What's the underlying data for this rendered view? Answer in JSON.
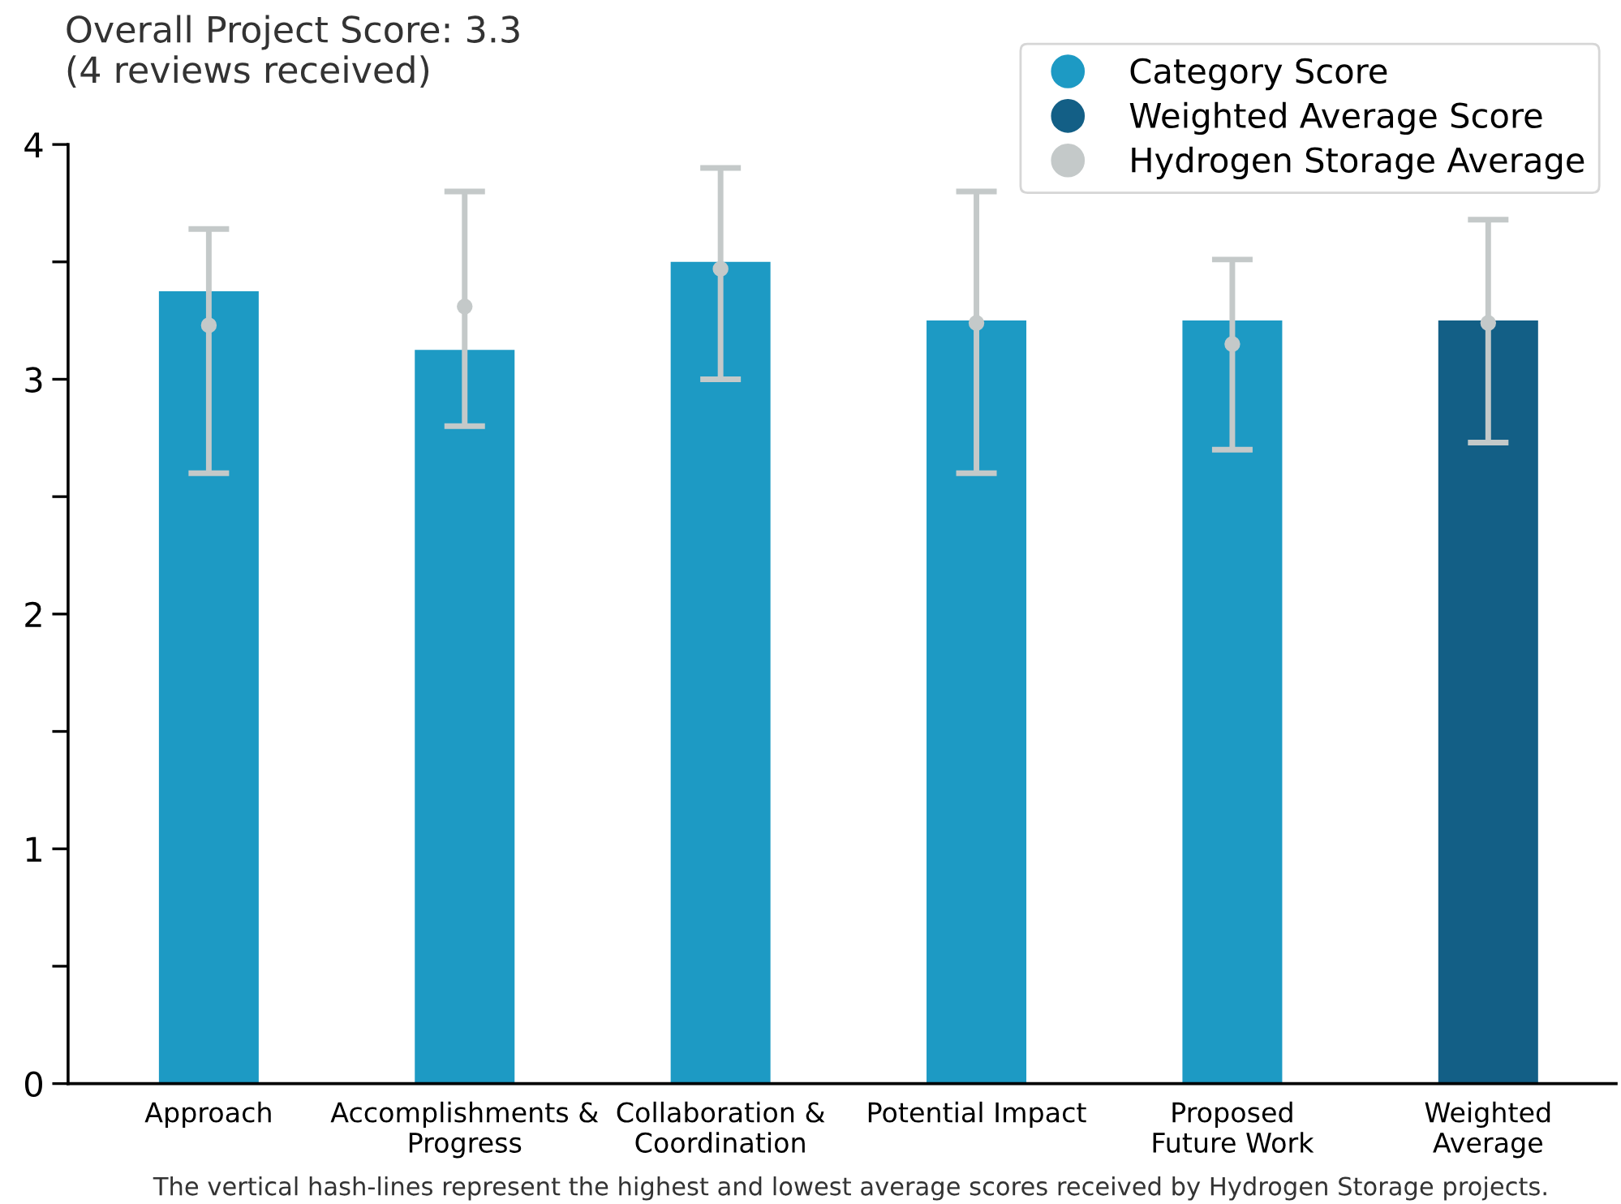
{
  "chart_data": {
    "type": "bar",
    "title": "Overall Project Score: 3.3\n(4 reviews received)",
    "categories": [
      "Approach",
      "Accomplishments &\nProgress",
      "Collaboration &\nCoordination",
      "Potential Impact",
      "Proposed\nFuture Work",
      "Weighted\nAverage"
    ],
    "series": [
      {
        "name": "Category Score",
        "color": "#1d9ac4",
        "values": [
          3.375,
          3.125,
          3.5,
          3.25,
          3.25,
          null
        ]
      },
      {
        "name": "Weighted Average Score",
        "color": "#135f86",
        "values": [
          null,
          null,
          null,
          null,
          null,
          3.25
        ]
      },
      {
        "name": "Hydrogen Storage Average",
        "type": "scatter",
        "color": "#c4c9c9",
        "values": [
          3.23,
          3.31,
          3.47,
          3.24,
          3.15,
          3.24
        ],
        "errors": [
          [
            2.6,
            3.64
          ],
          [
            2.8,
            3.8
          ],
          [
            3.0,
            3.9
          ],
          [
            2.6,
            3.8
          ],
          [
            2.7,
            3.51
          ],
          [
            2.73,
            3.68
          ]
        ]
      }
    ],
    "ylim": [
      0,
      4
    ],
    "yticks": [
      0,
      {
        "value": 0.5,
        "label": null
      },
      1,
      {
        "value": 1.5,
        "label": null
      },
      2,
      {
        "value": 2.5,
        "label": null
      },
      3,
      {
        "value": 3.5,
        "label": null
      },
      4
    ],
    "grid": false,
    "legend": "top right",
    "marker": "circle",
    "annotations": [
      "The vertical hash-lines represent the highest and lowest average scores received by Hydrogen Storage projects."
    ]
  }
}
